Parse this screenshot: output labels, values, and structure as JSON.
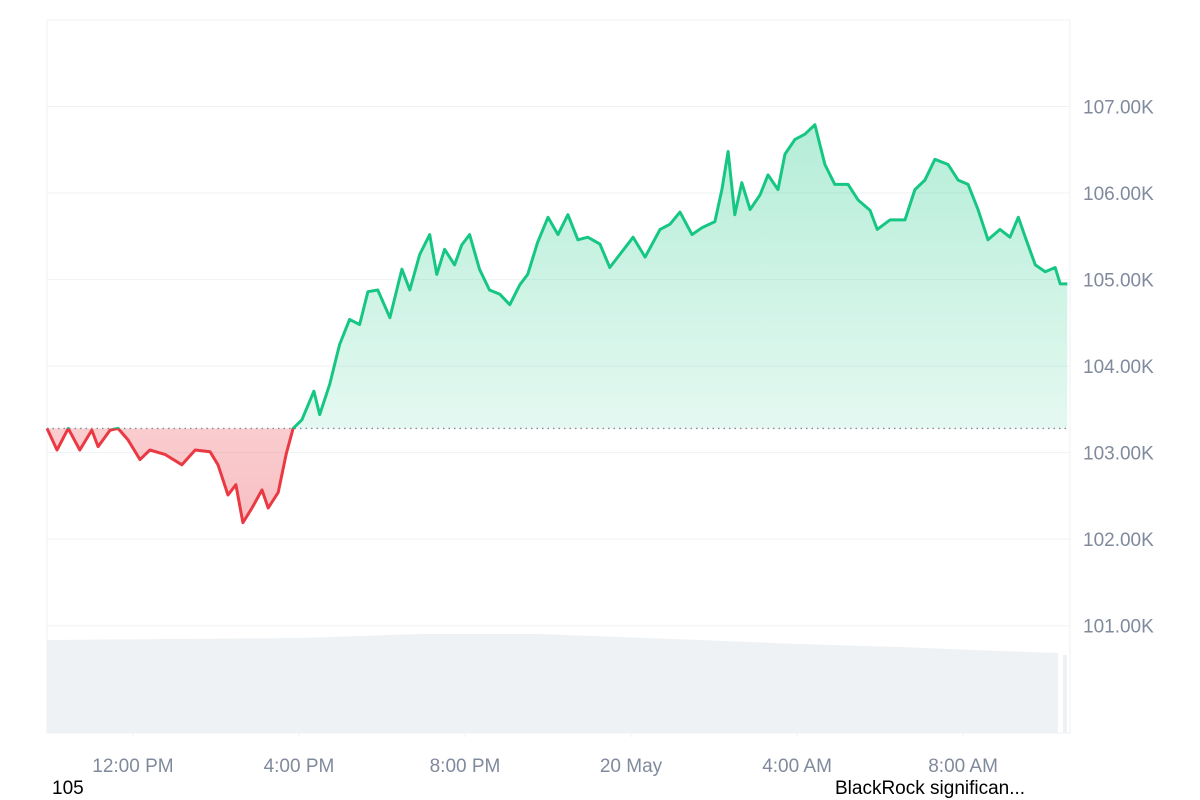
{
  "chart_data": {
    "type": "line",
    "x": [
      9.93,
      10.17,
      10.44,
      10.72,
      11.01,
      11.16,
      11.45,
      11.64,
      11.88,
      12.17,
      12.41,
      12.77,
      13.18,
      13.5,
      13.86,
      14.05,
      14.29,
      14.48,
      14.65,
      14.87,
      15.11,
      15.26,
      15.5,
      15.69,
      15.86,
      16.07,
      16.36,
      16.5,
      16.74,
      16.98,
      17.22,
      17.46,
      17.66,
      17.9,
      18.19,
      18.48,
      18.67,
      18.91,
      19.15,
      19.32,
      19.51,
      19.75,
      19.92,
      20.11,
      20.35,
      20.59,
      20.84,
      21.08,
      21.32,
      21.51,
      21.75,
      22.0,
      22.24,
      22.48,
      22.72,
      22.96,
      23.25,
      23.49,
      23.73,
      24.05,
      24.34,
      24.7,
      24.94,
      25.18,
      25.47,
      25.71,
      26.02,
      26.19,
      26.34,
      26.5,
      26.67,
      26.87,
      27.11,
      27.3,
      27.54,
      27.71,
      27.95,
      28.19,
      28.43,
      28.67,
      28.91,
      29.23,
      29.47,
      29.76,
      29.93,
      30.24,
      30.6,
      30.84,
      31.08,
      31.32,
      31.64,
      31.88,
      32.12,
      32.36,
      32.6,
      32.89,
      33.13,
      33.33,
      33.5,
      33.74,
      33.98,
      34.22,
      34.34,
      34.51
    ],
    "series": [
      {
        "values": [
          103280,
          103030,
          103280,
          103030,
          103260,
          103070,
          103260,
          103280,
          103150,
          102920,
          103030,
          102980,
          102860,
          103030,
          103010,
          102860,
          102510,
          102630,
          102190,
          102360,
          102570,
          102360,
          102540,
          102980,
          103280,
          103380,
          103710,
          103440,
          103790,
          104250,
          104540,
          104480,
          104860,
          104880,
          104560,
          105120,
          104880,
          105290,
          105520,
          105060,
          105350,
          105170,
          105400,
          105520,
          105120,
          104880,
          104830,
          104710,
          104940,
          105060,
          105430,
          105720,
          105520,
          105750,
          105460,
          105490,
          105410,
          105140,
          105290,
          105490,
          105260,
          105580,
          105640,
          105780,
          105520,
          105600,
          105670,
          106040,
          106480,
          105750,
          106120,
          105810,
          105980,
          106210,
          106040,
          106450,
          106620,
          106680,
          106790,
          106330,
          106100,
          106100,
          105920,
          105800,
          105580,
          105690,
          105690,
          106040,
          106150,
          106390,
          106330,
          106150,
          106100,
          105810,
          105460,
          105580,
          105490,
          105720,
          105490,
          105170,
          105090,
          105140,
          104950,
          104950
        ]
      }
    ],
    "baseline": 103280,
    "colors": {
      "above": "#16c784",
      "below": "#ea3943"
    },
    "xlim": [
      9.93,
      34.6
    ],
    "xticks": [
      {
        "value": 12,
        "label": "12:00 PM"
      },
      {
        "value": 16,
        "label": "4:00 PM"
      },
      {
        "value": 20,
        "label": "8:00 PM"
      },
      {
        "value": 24,
        "label": "20 May"
      },
      {
        "value": 28,
        "label": "4:00 AM"
      },
      {
        "value": 32,
        "label": "8:00 AM"
      }
    ],
    "ylim": [
      99760,
      108000
    ],
    "yticks": [
      {
        "value": 101000,
        "label": "101.00K"
      },
      {
        "value": 102000,
        "label": "102.00K"
      },
      {
        "value": 103000,
        "label": "103.00K"
      },
      {
        "value": 104000,
        "label": "104.00K"
      },
      {
        "value": 105000,
        "label": "105.00K"
      },
      {
        "value": 106000,
        "label": "106.00K"
      },
      {
        "value": 107000,
        "label": "107.00K"
      }
    ],
    "grid": true
  },
  "footer": {
    "left": "105",
    "right": "BlackRock significan..."
  }
}
